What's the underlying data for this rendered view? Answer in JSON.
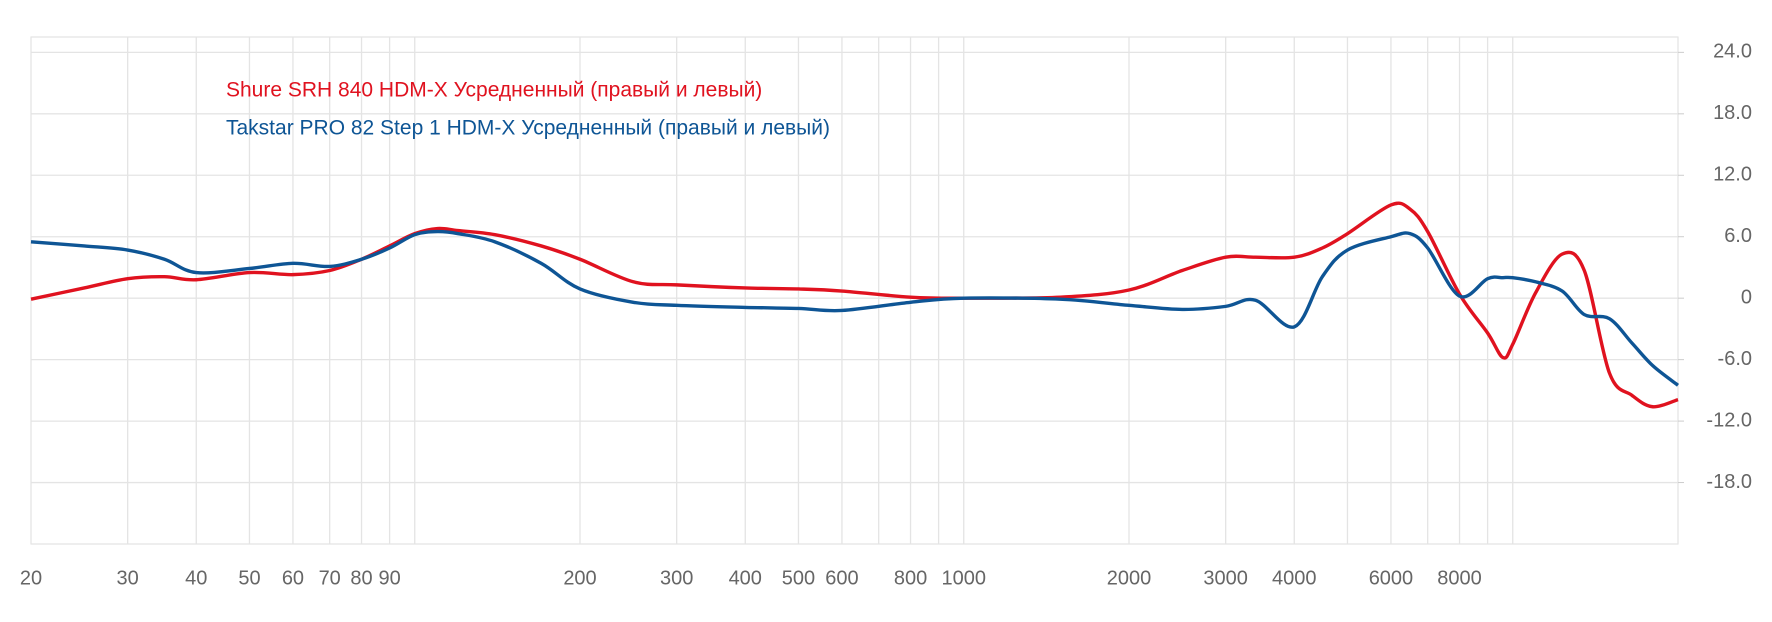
{
  "chart_data": {
    "type": "line",
    "x": [
      20,
      25,
      30,
      35,
      40,
      50,
      60,
      70,
      80,
      90,
      100,
      110,
      120,
      140,
      170,
      200,
      250,
      300,
      400,
      500,
      600,
      800,
      1000,
      1500,
      2000,
      2500,
      3000,
      3400,
      4000,
      4500,
      5000,
      6000,
      6500,
      7000,
      8000,
      9000,
      9600,
      10000,
      11000,
      12300,
      13500,
      15000,
      16500,
      18000,
      20000
    ],
    "series": [
      {
        "name": "Shure SRH 840 HDM-X Усредненный (правый и левый)",
        "color": "#e0121f",
        "values": [
          -0.1,
          1.0,
          1.9,
          2.1,
          1.8,
          2.5,
          2.3,
          2.7,
          3.8,
          5.1,
          6.3,
          6.8,
          6.6,
          6.2,
          5.1,
          3.8,
          1.6,
          1.3,
          1.0,
          0.9,
          0.7,
          0.1,
          0,
          0.1,
          0.8,
          2.7,
          4.0,
          4.0,
          4.0,
          4.9,
          6.3,
          9.1,
          8.7,
          6.5,
          0.4,
          -3.4,
          -5.8,
          -4.5,
          0.5,
          4.3,
          2.7,
          -7.3,
          -9.5,
          -10.6,
          -9.9
        ]
      },
      {
        "name": "Takstar PRO 82 Step 1 HDM-X Усредненный (правый и левый)",
        "color": "#0e5595",
        "values": [
          5.5,
          5.1,
          4.7,
          3.8,
          2.5,
          2.9,
          3.4,
          3.1,
          3.8,
          4.9,
          6.2,
          6.5,
          6.3,
          5.5,
          3.4,
          0.9,
          -0.4,
          -0.7,
          -0.9,
          -1.0,
          -1.2,
          -0.4,
          0,
          -0.1,
          -0.7,
          -1.1,
          -0.8,
          -0.2,
          -2.8,
          2.1,
          4.7,
          6.0,
          6.3,
          4.9,
          0.2,
          1.9,
          2.0,
          2.0,
          1.6,
          0.7,
          -1.6,
          -2.0,
          -4.4,
          -6.6,
          -8.5
        ]
      }
    ],
    "log_x": true,
    "xlim": [
      20,
      20000
    ],
    "xticks": [
      20,
      30,
      40,
      50,
      60,
      70,
      80,
      90,
      200,
      300,
      400,
      500,
      600,
      800,
      1000,
      2000,
      3000,
      4000,
      6000,
      8000
    ],
    "xgrid": [
      20,
      30,
      40,
      50,
      60,
      70,
      80,
      90,
      100,
      200,
      300,
      400,
      500,
      600,
      700,
      800,
      900,
      1000,
      2000,
      3000,
      4000,
      5000,
      6000,
      7000,
      8000,
      9000,
      10000,
      20000
    ],
    "ylim": [
      -24,
      25.5
    ],
    "yticks": [
      {
        "value": 24,
        "label": "24.0"
      },
      {
        "value": 18,
        "label": "18.0"
      },
      {
        "value": 12,
        "label": "12.0"
      },
      {
        "value": 6,
        "label": "6.0"
      },
      0,
      {
        "value": -6,
        "label": "-6.0"
      },
      {
        "value": -12,
        "label": "-12.0"
      },
      {
        "value": -18,
        "label": "-18.0"
      }
    ],
    "grid": true
  }
}
